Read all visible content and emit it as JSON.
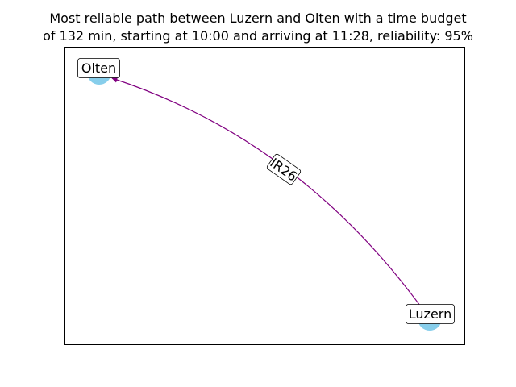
{
  "title": {
    "line1": "Most reliable path between Luzern and Olten with a time budget",
    "line2": "of 132 min, starting at 10:00 and arriving at 11:28, reliability: 95%"
  },
  "graph": {
    "nodes": [
      {
        "id": "olten",
        "label": "Olten"
      },
      {
        "id": "luzern",
        "label": "Luzern"
      }
    ],
    "edges": [
      {
        "from": "luzern",
        "to": "olten",
        "label": "IR26"
      }
    ]
  },
  "colors": {
    "node_fill": "#87ceeb",
    "edge": "#800080",
    "frame": "#000000",
    "label_border": "#000000",
    "label_fill": "#ffffff"
  }
}
